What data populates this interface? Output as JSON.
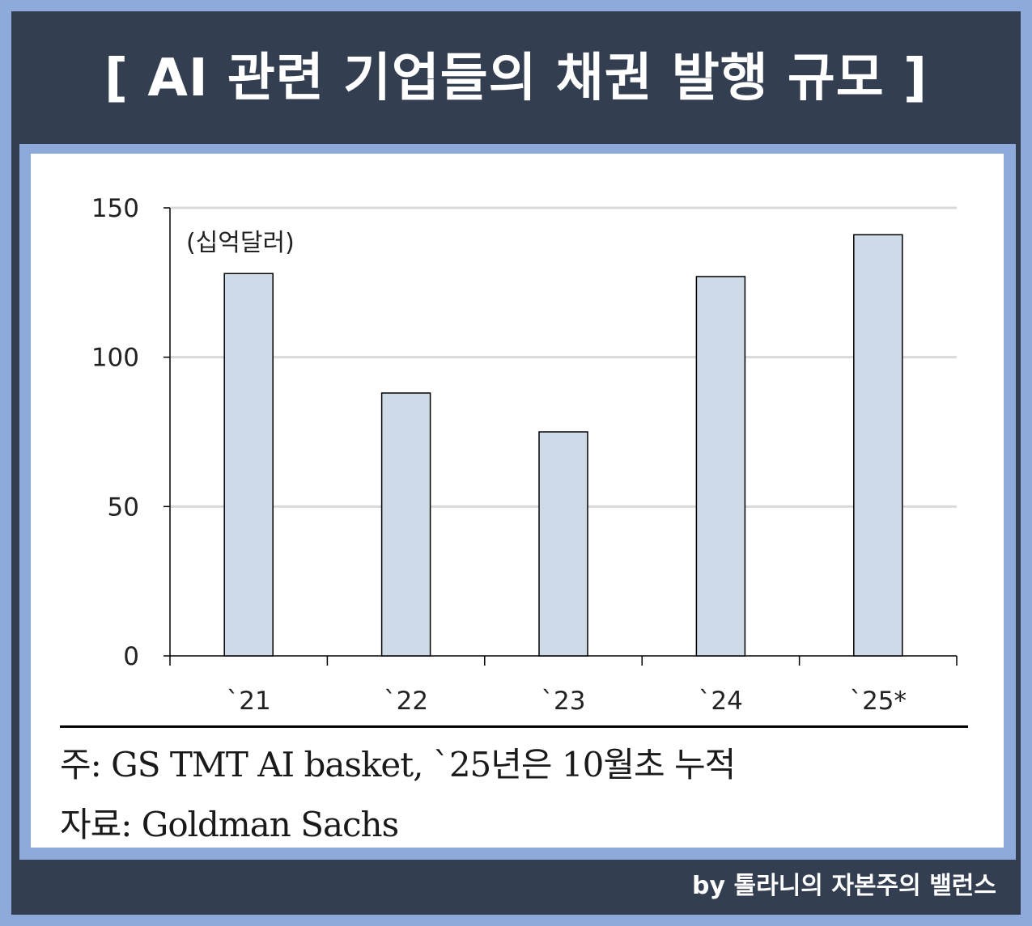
{
  "header": {
    "title": "[ AI  관련 기업들의 채권 발행 규모 ]"
  },
  "chart_data": {
    "type": "bar",
    "categories": [
      "`21",
      "`22",
      "`23",
      "`24",
      "`25*"
    ],
    "values": [
      128,
      88,
      75,
      127,
      141
    ],
    "unit_label": "(십억달러)",
    "ylim": [
      0,
      150
    ],
    "yticks": [
      "0",
      "50",
      "100",
      "150"
    ],
    "grid": true,
    "bar_fill": "#cfdae8",
    "bar_stroke": "#000000"
  },
  "notes": {
    "note": "주: GS TMT AI basket, `25년은 10월초 누적",
    "source": "자료: Goldman Sachs"
  },
  "footer": {
    "credit": "by 톨라니의 자본주의 밸런스"
  },
  "colors": {
    "frame": "#333e50",
    "border": "#8eaadb"
  }
}
